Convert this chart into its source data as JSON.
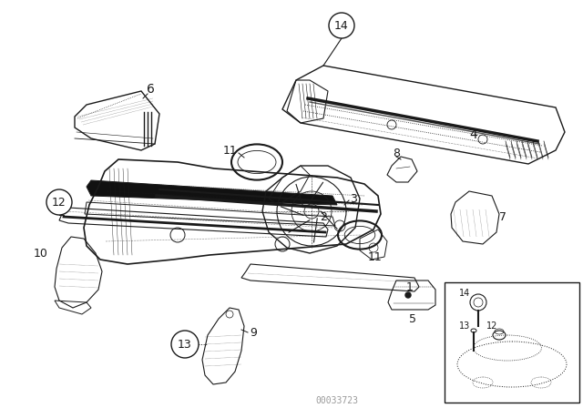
{
  "bg_color": "#ffffff",
  "line_color": "#1a1a1a",
  "fig_width": 6.4,
  "fig_height": 4.48,
  "dpi": 100,
  "watermark": "00033723"
}
